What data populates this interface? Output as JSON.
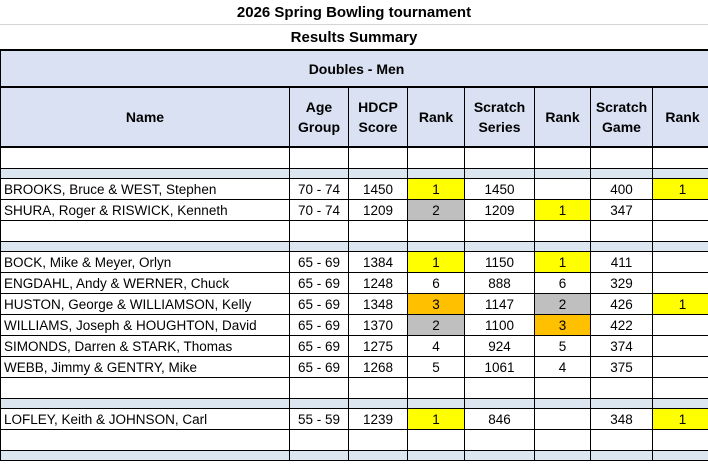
{
  "title": "2026 Spring Bowling tournament",
  "subtitle": "Results Summary",
  "section": "Doubles - Men",
  "headers": {
    "name": "Name",
    "age1": "Age",
    "age2": "Group",
    "hdcp1": "HDCP",
    "hdcp2": "Score",
    "rank": "Rank",
    "ss1": "Scratch",
    "ss2": "Series",
    "sg1": "Scratch",
    "sg2": "Game"
  },
  "highlight_colors": {
    "first": "#ffff00",
    "second": "#bfbfbf",
    "third": "#ffc000"
  },
  "groups": [
    {
      "rows": [
        {
          "name": "BROOKS, Bruce & WEST, Stephen",
          "age": "70 - 74",
          "hdcp": "1450",
          "hdcp_rank": "1",
          "series": "1450",
          "series_rank": "",
          "game": "400",
          "game_rank": "1"
        },
        {
          "name": "SHURA, Roger & RISWICK, Kenneth",
          "age": "70 - 74",
          "hdcp": "1209",
          "hdcp_rank": "2",
          "series": "1209",
          "series_rank": "1",
          "game": "347",
          "game_rank": ""
        }
      ]
    },
    {
      "rows": [
        {
          "name": "BOCK, Mike & Meyer, Orlyn",
          "age": "65 - 69",
          "hdcp": "1384",
          "hdcp_rank": "1",
          "series": "1150",
          "series_rank": "1",
          "game": "411",
          "game_rank": ""
        },
        {
          "name": "ENGDAHL, Andy & WERNER, Chuck",
          "age": "65 - 69",
          "hdcp": "1248",
          "hdcp_rank": "6",
          "series": "888",
          "series_rank": "6",
          "game": "329",
          "game_rank": ""
        },
        {
          "name": "HUSTON, George & WILLIAMSON, Kelly",
          "age": "65 - 69",
          "hdcp": "1348",
          "hdcp_rank": "3",
          "series": "1147",
          "series_rank": "2",
          "game": "426",
          "game_rank": "1"
        },
        {
          "name": "WILLIAMS, Joseph & HOUGHTON, David",
          "age": "65 - 69",
          "hdcp": "1370",
          "hdcp_rank": "2",
          "series": "1100",
          "series_rank": "3",
          "game": "422",
          "game_rank": ""
        },
        {
          "name": "SIMONDS, Darren & STARK, Thomas",
          "age": "65 - 69",
          "hdcp": "1275",
          "hdcp_rank": "4",
          "series": "924",
          "series_rank": "5",
          "game": "374",
          "game_rank": ""
        },
        {
          "name": "WEBB, Jimmy & GENTRY, Mike",
          "age": "65 - 69",
          "hdcp": "1268",
          "hdcp_rank": "5",
          "series": "1061",
          "series_rank": "4",
          "game": "375",
          "game_rank": ""
        }
      ]
    },
    {
      "rows": [
        {
          "name": "LOFLEY, Keith & JOHNSON, Carl",
          "age": "55 - 59",
          "hdcp": "1239",
          "hdcp_rank": "1",
          "series": "846",
          "series_rank": "",
          "game": "348",
          "game_rank": "1"
        }
      ]
    }
  ]
}
